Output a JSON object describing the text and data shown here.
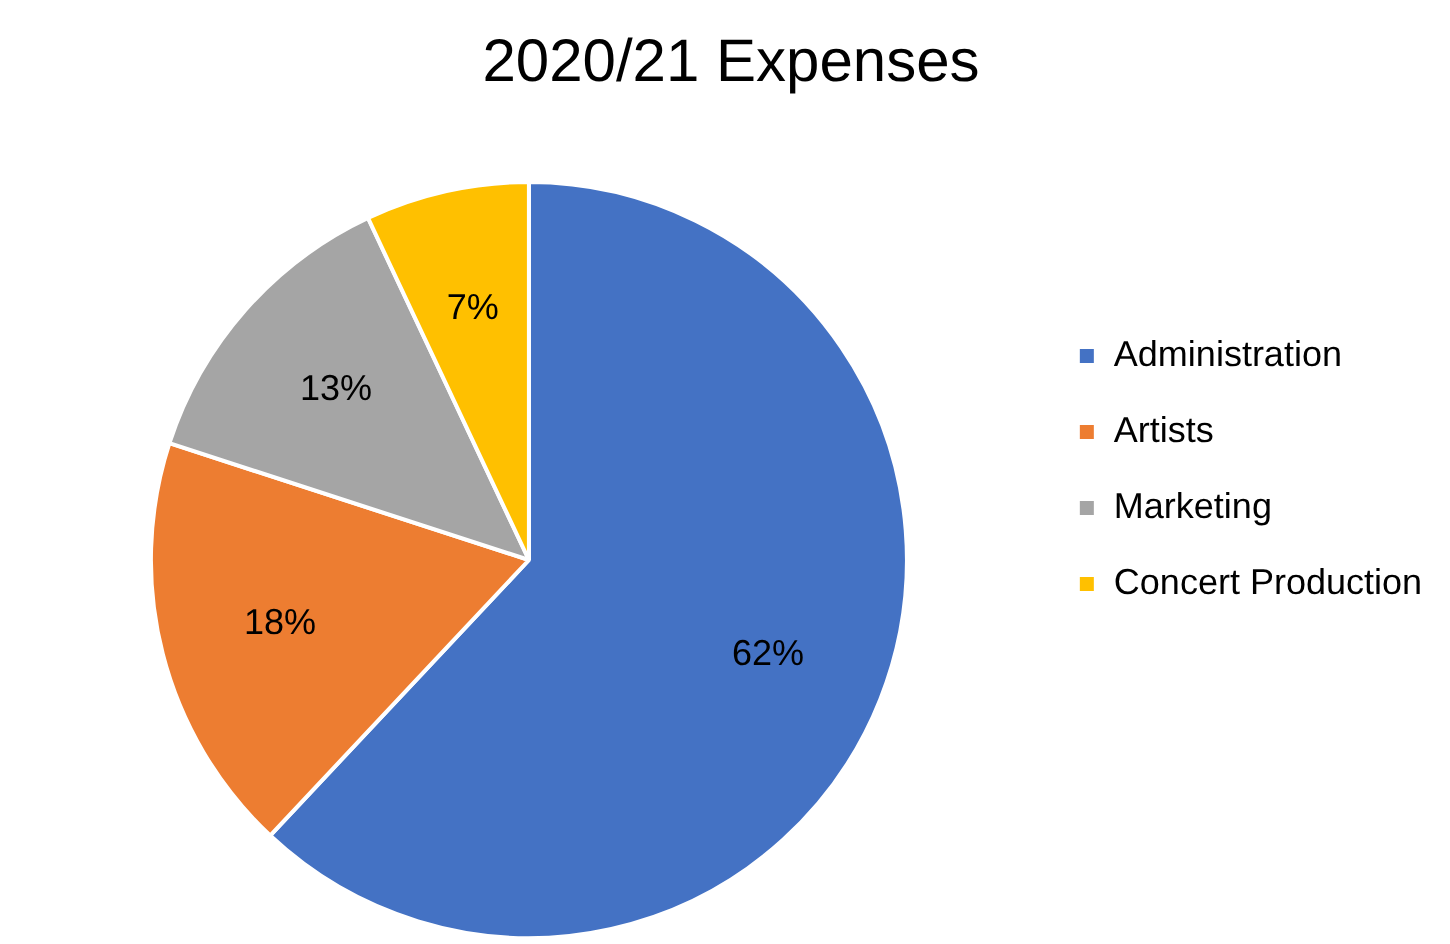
{
  "chart_data": {
    "type": "pie",
    "title": "2020/21 Expenses",
    "categories": [
      "Administration",
      "Artists",
      "Marketing",
      "Concert Production"
    ],
    "values": [
      62,
      18,
      13,
      7
    ],
    "colors": [
      "#4472c4",
      "#ed7d31",
      "#a5a5a5",
      "#ffc000"
    ],
    "value_labels": [
      "62%",
      "18%",
      "13%",
      "7%"
    ],
    "legend": "right"
  }
}
